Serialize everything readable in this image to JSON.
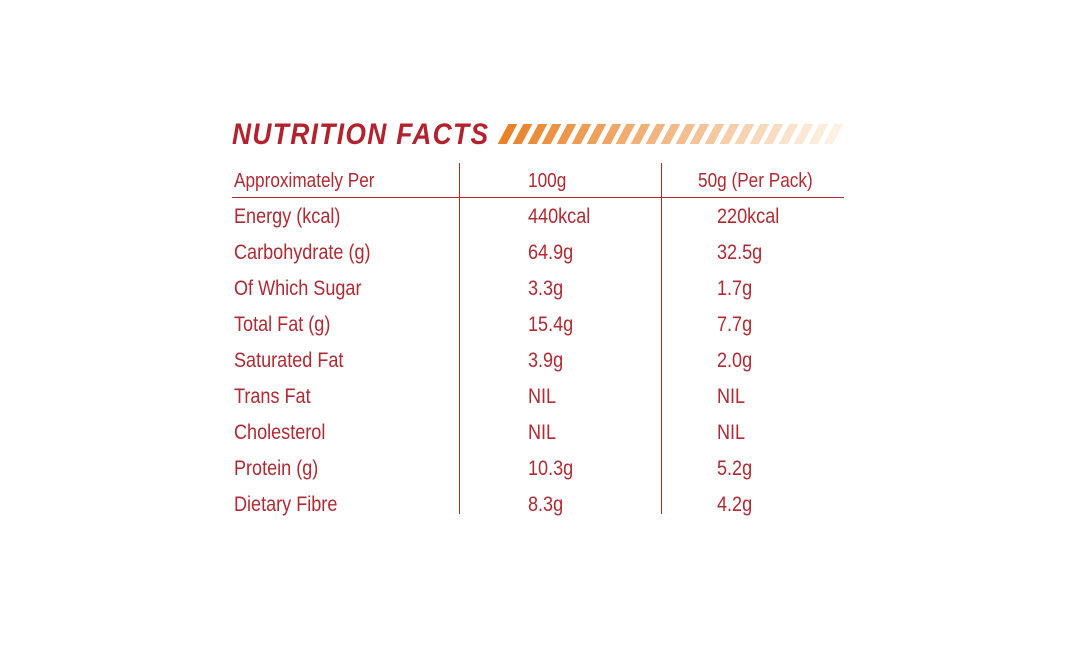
{
  "title": "NUTRITION FACTS",
  "colors": {
    "title": "#b3222e",
    "text": "#b02a32",
    "stripe_start": "#e8832a",
    "stripe_end": "#fdf1e4"
  },
  "stripe_count": 23,
  "table": {
    "headers": [
      "Approximately Per",
      "100g",
      "50g (Per Pack)"
    ],
    "rows": [
      [
        "Energy (kcal)",
        "440kcal",
        "220kcal"
      ],
      [
        "Carbohydrate (g)",
        "64.9g",
        "32.5g"
      ],
      [
        "Of Which Sugar",
        "3.3g",
        "1.7g"
      ],
      [
        "Total Fat (g)",
        "15.4g",
        "7.7g"
      ],
      [
        "Saturated Fat",
        "3.9g",
        "2.0g"
      ],
      [
        "Trans Fat",
        "NIL",
        "NIL"
      ],
      [
        "Cholesterol",
        "NIL",
        "NIL"
      ],
      [
        "Protein (g)",
        "10.3g",
        "5.2g"
      ],
      [
        "Dietary Fibre",
        "8.3g",
        "4.2g"
      ]
    ]
  }
}
